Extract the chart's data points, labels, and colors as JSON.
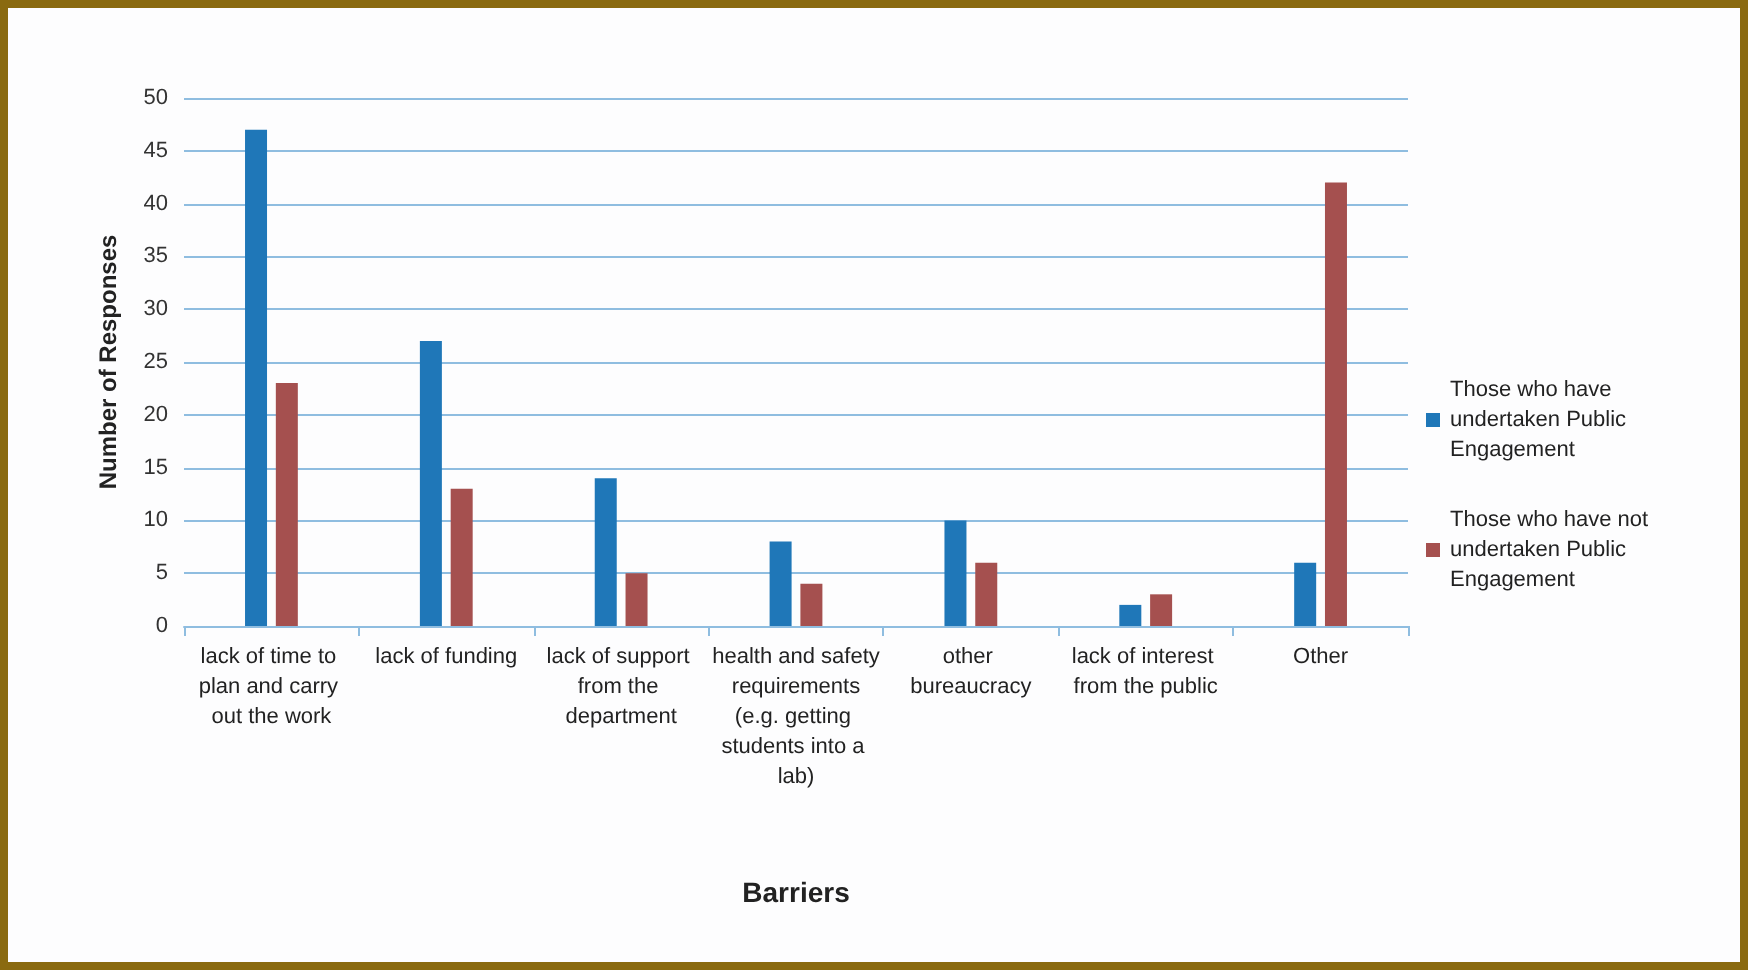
{
  "chart_data": {
    "type": "bar",
    "xlabel": "Barriers",
    "ylabel": "Number of Responses",
    "categories": [
      "lack of time to plan and carry out the work",
      "lack of funding",
      "lack of support from the department",
      "health and safety requirements (e.g. getting students into a lab)",
      "other bureaucracy",
      "lack of interest from the public",
      "Other"
    ],
    "series": [
      {
        "name": "Those who have undertaken Public Engagement",
        "color": "#1f77b8",
        "values": [
          47,
          27,
          14,
          8,
          10,
          2,
          6
        ]
      },
      {
        "name": "Those who have not undertaken Public Engagement",
        "color": "#a5504f",
        "values": [
          23,
          13,
          5,
          4,
          6,
          3,
          42
        ]
      }
    ],
    "ylim": [
      0,
      50
    ],
    "yticks": [
      0,
      5,
      10,
      15,
      20,
      25,
      30,
      35,
      40,
      45,
      50
    ],
    "grid": "y",
    "legend": "right"
  }
}
